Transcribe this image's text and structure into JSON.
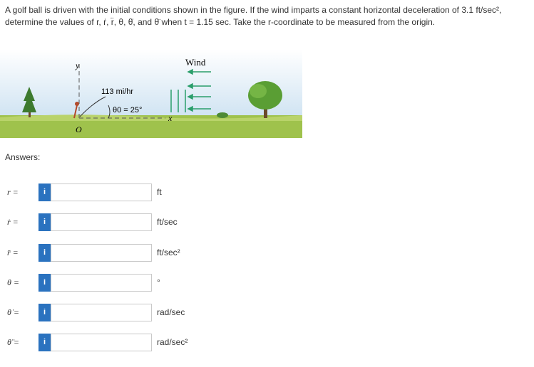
{
  "question": "A golf ball is driven with the initial conditions shown in the figure. If the wind imparts a constant horizontal deceleration of 3.1 ft/sec², determine the values of r, ṙ, r̈, θ, θ̇, and θ̈ when t = 1.15 sec. Take the r-coordinate to be measured from the origin.",
  "figure": {
    "y_axis": "y",
    "x_axis": "x",
    "origin": "O",
    "speed": "113 mi/hr",
    "angle": "θ0 = 25°",
    "wind": "Wind"
  },
  "answers_label": "Answers:",
  "info_icon": "i",
  "rows": [
    {
      "label": "r =",
      "unit": "ft"
    },
    {
      "label": "ṙ =",
      "unit": "ft/sec"
    },
    {
      "label": "r̈ =",
      "unit": "ft/sec²"
    },
    {
      "label": "θ =",
      "unit": "°"
    },
    {
      "label": "θ̇ =",
      "unit": "rad/sec"
    },
    {
      "label": "θ̈ =",
      "unit": "rad/sec²"
    }
  ]
}
